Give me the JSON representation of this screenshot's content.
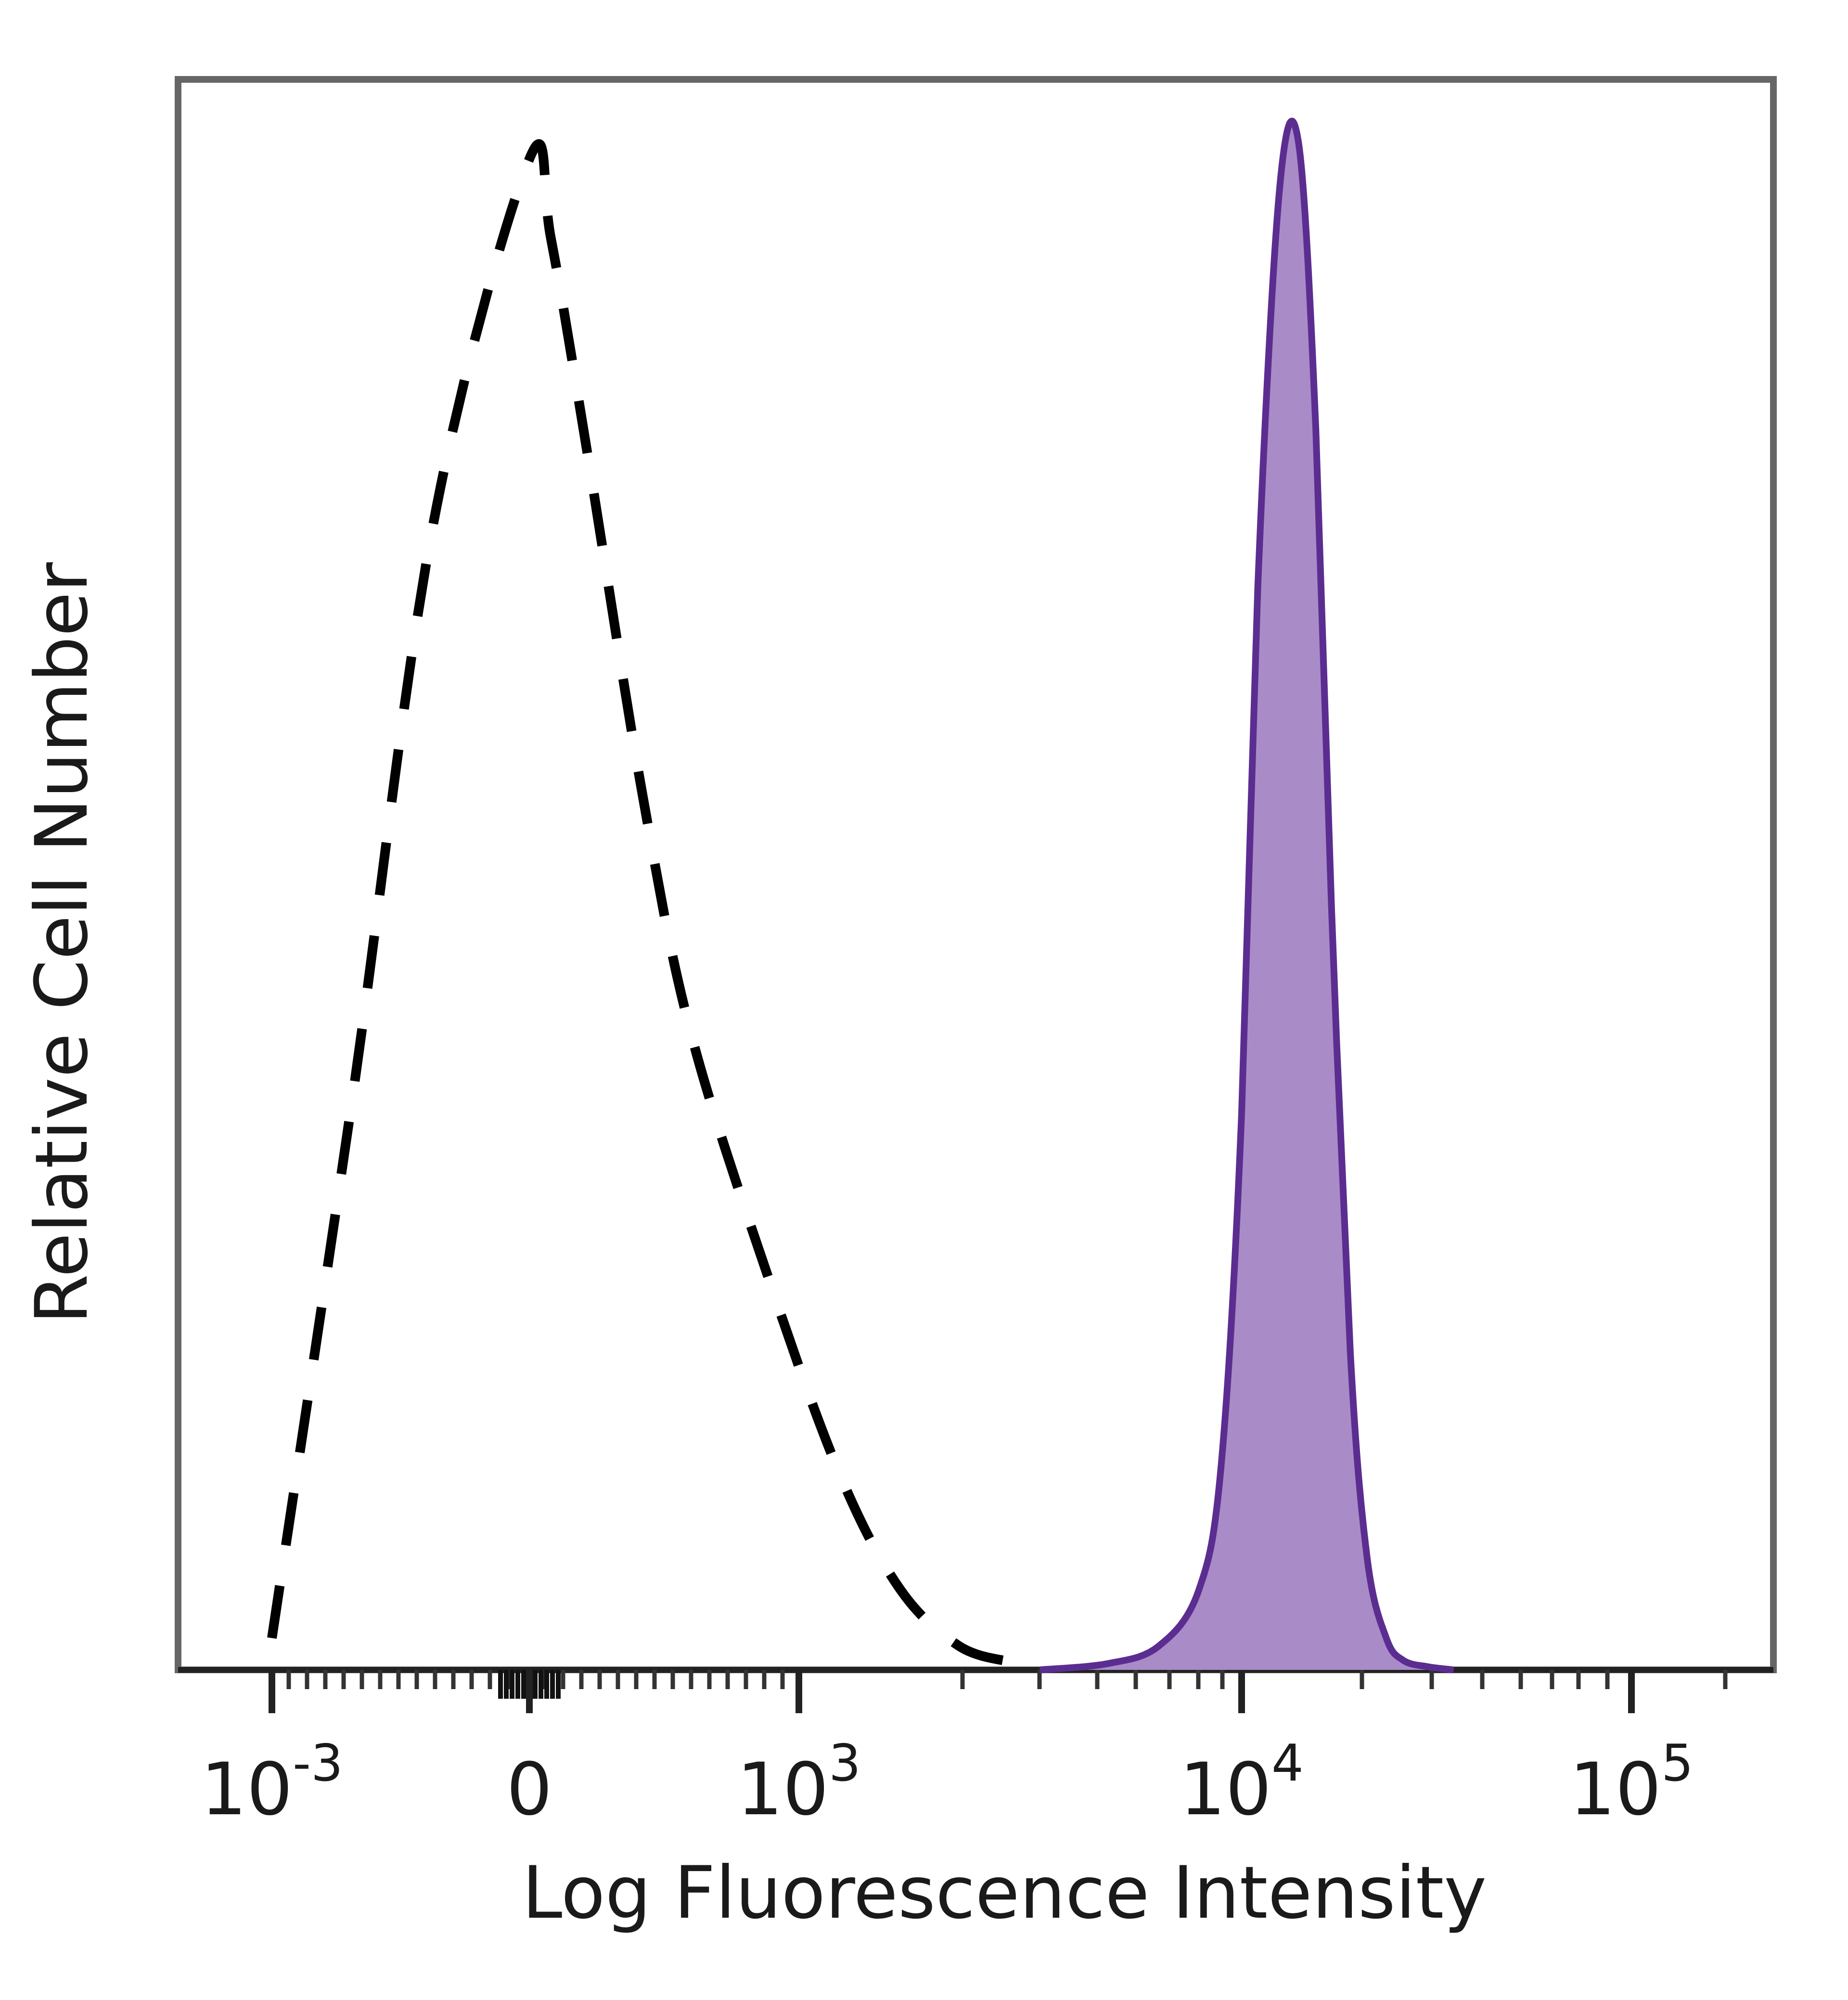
{
  "chart_data": {
    "type": "area",
    "title": "",
    "xlabel": "Log Fluorescence Intensity",
    "ylabel": "Relative Cell Number",
    "x_scale": "biexponential",
    "grid": false,
    "ylim": [
      0,
      1
    ],
    "x_ticks": [
      {
        "value": -0.001,
        "base": "10",
        "exp": "-3"
      },
      {
        "value": 0,
        "base": "0",
        "exp": ""
      },
      {
        "value": 1000,
        "base": "10",
        "exp": "3"
      },
      {
        "value": 10000,
        "base": "10",
        "exp": "4"
      },
      {
        "value": 100000,
        "base": "10",
        "exp": "5"
      }
    ],
    "series": [
      {
        "style": "dashed",
        "fill": false,
        "color": "#000000",
        "x": [
          -0.001,
          -0.0006,
          -0.0002,
          0,
          80,
          220,
          420,
          600,
          900,
          1250,
          1700,
          2300,
          3000
        ],
        "y": [
          0.02,
          0.36,
          0.72,
          0.95,
          0.9,
          0.76,
          0.55,
          0.4,
          0.24,
          0.12,
          0.05,
          0.015,
          0.005
        ]
      },
      {
        "style": "solid",
        "fill": true,
        "color": "#5b2d90",
        "fill_color": "#a98bc8",
        "x": [
          3500,
          5000,
          6500,
          8000,
          9000,
          10000,
          11000,
          12500,
          14000,
          15500,
          17000,
          19000,
          21000,
          23500,
          26000,
          30000,
          35000
        ],
        "y": [
          0.0,
          0.004,
          0.015,
          0.05,
          0.13,
          0.35,
          0.68,
          0.93,
          0.96,
          0.78,
          0.48,
          0.2,
          0.07,
          0.02,
          0.006,
          0.002,
          0.0
        ]
      }
    ]
  }
}
